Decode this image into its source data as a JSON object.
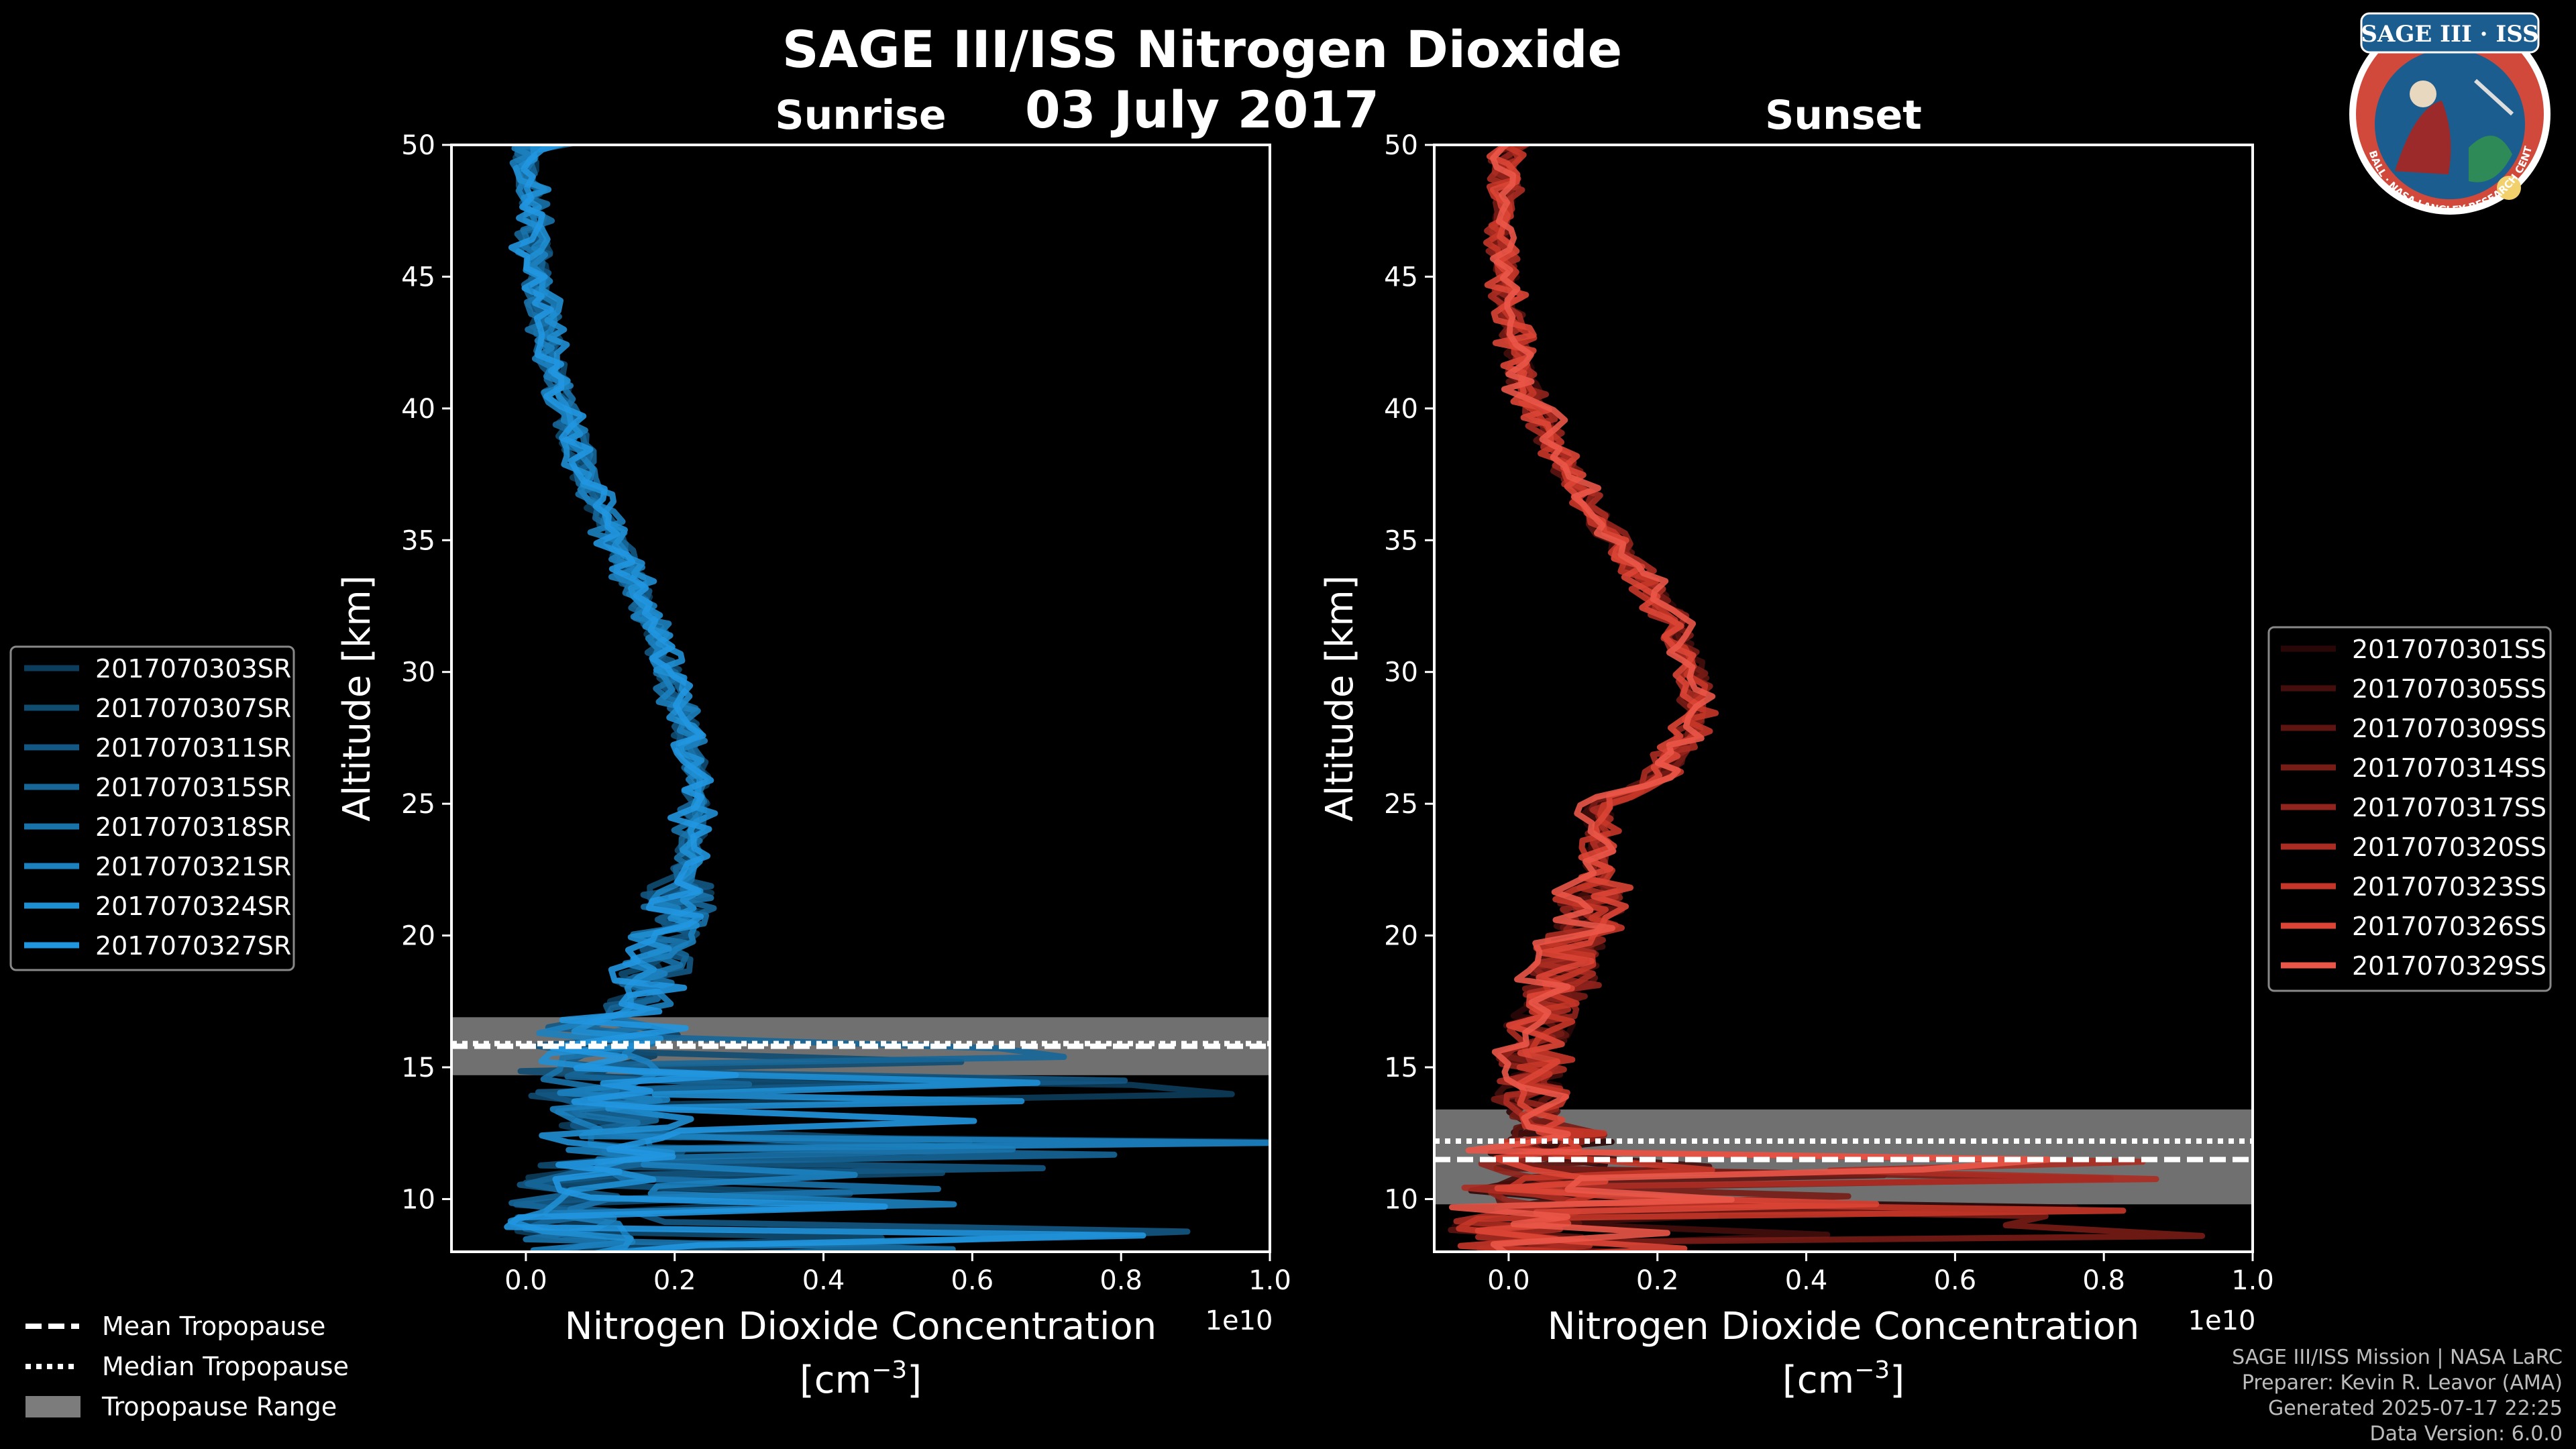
{
  "title": "SAGE III/ISS Nitrogen Dioxide",
  "date": "03 July 2017",
  "logo": {
    "text_top": "SAGE III · ISS",
    "text_ring": "BALL · NASA LANGLEY RESEARCH CENTER · TAS-I · ESA",
    "ring_color": "#d0493b",
    "inner_color": "#1c5d8f"
  },
  "footer": {
    "line1": "SAGE III/ISS Mission | NASA LaRC",
    "line2": "Preparer: Kevin R. Leavor (AMA)",
    "line3": "Generated 2025-07-17 22:25",
    "line4": "Data Version: 6.0.0"
  },
  "bottom_legend": [
    {
      "label": "Mean Tropopause",
      "style": "dashed"
    },
    {
      "label": "Median Tropopause",
      "style": "dotted"
    },
    {
      "label": "Tropopause Range",
      "style": "band"
    }
  ],
  "chart_data": [
    {
      "type": "line",
      "title": "Sunrise",
      "xlabel": "Nitrogen Dioxide Concentration",
      "xunit": "[cm",
      "xunit_sup": "−3",
      "xunit_end": "]",
      "ylabel": "Altitude [km]",
      "x_offset_text": "1e10",
      "xlim": [
        -0.1,
        1.0
      ],
      "ylim": [
        8,
        50
      ],
      "xticks": [
        0.0,
        0.2,
        0.4,
        0.6,
        0.8,
        1.0
      ],
      "xtick_labels": [
        "0.0",
        "0.2",
        "0.4",
        "0.6",
        "0.8",
        "1.0"
      ],
      "yticks": [
        10,
        15,
        20,
        25,
        30,
        35,
        40,
        45,
        50
      ],
      "tropopause": {
        "mean": 15.8,
        "median": 15.9,
        "min": 14.7,
        "max": 16.9
      },
      "legend": [
        "2017070303SR",
        "2017070307SR",
        "2017070311SR",
        "2017070315SR",
        "2017070318SR",
        "2017070321SR",
        "2017070324SR",
        "2017070327SR"
      ],
      "series_colors": [
        "#0d3d5c",
        "#104b70",
        "#135884",
        "#166698",
        "#1973ab",
        "#1c81bf",
        "#1f8fd3",
        "#2196e0"
      ],
      "profile": {
        "alt": [
          50,
          47,
          44,
          41,
          38,
          35,
          32,
          29,
          26,
          23,
          21,
          19,
          17.5,
          16,
          15,
          14,
          13,
          12,
          11,
          10,
          9
        ],
        "value": [
          0.0,
          0.01,
          0.02,
          0.04,
          0.07,
          0.12,
          0.17,
          0.2,
          0.23,
          0.22,
          0.2,
          0.18,
          0.15,
          0.1,
          0.08,
          0.1,
          0.12,
          0.12,
          0.1,
          0.08,
          0.06
        ]
      }
    },
    {
      "type": "line",
      "title": "Sunset",
      "xlabel": "Nitrogen Dioxide Concentration",
      "xunit": "[cm",
      "xunit_sup": "−3",
      "xunit_end": "]",
      "ylabel": "Altitude [km]",
      "x_offset_text": "1e10",
      "xlim": [
        -0.1,
        1.0
      ],
      "ylim": [
        8,
        50
      ],
      "xticks": [
        0.0,
        0.2,
        0.4,
        0.6,
        0.8,
        1.0
      ],
      "xtick_labels": [
        "0.0",
        "0.2",
        "0.4",
        "0.6",
        "0.8",
        "1.0"
      ],
      "yticks": [
        10,
        15,
        20,
        25,
        30,
        35,
        40,
        45,
        50
      ],
      "tropopause": {
        "mean": 11.5,
        "median": 12.2,
        "min": 9.8,
        "max": 13.4
      },
      "legend": [
        "2017070301SS",
        "2017070305SS",
        "2017070309SS",
        "2017070314SS",
        "2017070317SS",
        "2017070320SS",
        "2017070323SS",
        "2017070326SS",
        "2017070329SS"
      ],
      "series_colors": [
        "#2a0707",
        "#440e0c",
        "#5e1511",
        "#781c16",
        "#91241c",
        "#ab2c22",
        "#c53628",
        "#dc4535",
        "#ea5748"
      ],
      "profile": {
        "alt": [
          50,
          47,
          44,
          41,
          38,
          35,
          32,
          30,
          28,
          26,
          25,
          23,
          21,
          19,
          17,
          15,
          14,
          13,
          12,
          11,
          10,
          9
        ],
        "value": [
          0.0,
          -0.01,
          0.0,
          0.02,
          0.07,
          0.14,
          0.22,
          0.25,
          0.25,
          0.2,
          0.12,
          0.12,
          0.11,
          0.08,
          0.05,
          0.03,
          0.02,
          0.04,
          0.05,
          0.05,
          0.03,
          0.02
        ]
      }
    }
  ]
}
